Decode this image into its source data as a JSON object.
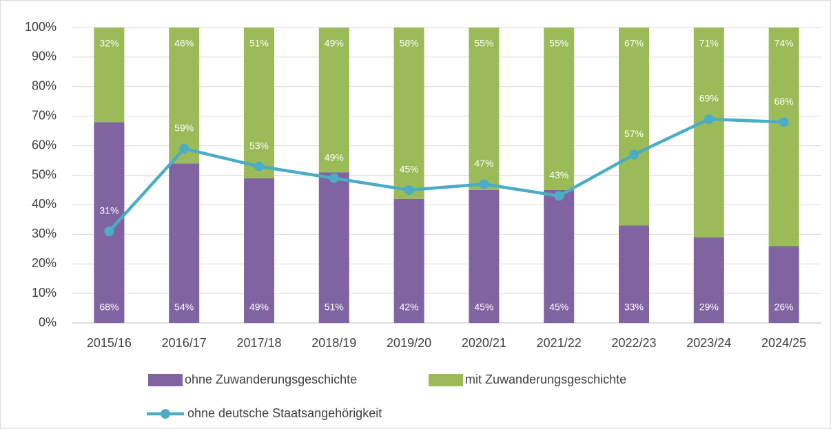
{
  "chart_data": {
    "type": "bar",
    "stacked": true,
    "categories": [
      "2015/16",
      "2016/17",
      "2017/18",
      "2018/19",
      "2019/20",
      "2020/21",
      "2021/22",
      "2022/23",
      "2023/24",
      "2024/25"
    ],
    "series": [
      {
        "name": "ohne Zuwanderungsgeschichte",
        "color": "#8064a2",
        "type": "bar",
        "values": [
          68,
          54,
          49,
          51,
          42,
          45,
          45,
          33,
          29,
          26
        ],
        "value_labels": [
          "68%",
          "54%",
          "49%",
          "51%",
          "42%",
          "45%",
          "45%",
          "33%",
          "29%",
          "26%"
        ]
      },
      {
        "name": "mit Zuwanderungsgeschichte",
        "color": "#9bbb59",
        "type": "bar",
        "values": [
          32,
          46,
          51,
          49,
          58,
          55,
          55,
          67,
          71,
          74
        ],
        "value_labels": [
          "32%",
          "46%",
          "51%",
          "49%",
          "58%",
          "55%",
          "55%",
          "67%",
          "71%",
          "74%"
        ]
      },
      {
        "name": "ohne deutsche Staatsangehörigkeit",
        "color": "#4bacc6",
        "type": "line",
        "values": [
          31,
          59,
          53,
          49,
          45,
          47,
          43,
          57,
          69,
          68
        ],
        "value_labels": [
          "31%",
          "59%",
          "53%",
          "49%",
          "45%",
          "47%",
          "43%",
          "57%",
          "69%",
          "68%"
        ]
      }
    ],
    "ylim": [
      0,
      100
    ],
    "yticks": [
      {
        "value": 0,
        "label": "0%"
      },
      {
        "value": 10,
        "label": "10%"
      },
      {
        "value": 20,
        "label": "20%"
      },
      {
        "value": 30,
        "label": "30%"
      },
      {
        "value": 40,
        "label": "40%"
      },
      {
        "value": 50,
        "label": "50%"
      },
      {
        "value": 60,
        "label": "60%"
      },
      {
        "value": 70,
        "label": "70%"
      },
      {
        "value": 80,
        "label": "80%"
      },
      {
        "value": 90,
        "label": "90%"
      },
      {
        "value": 100,
        "label": "100%"
      }
    ],
    "grid": true,
    "legend": "bottom"
  }
}
